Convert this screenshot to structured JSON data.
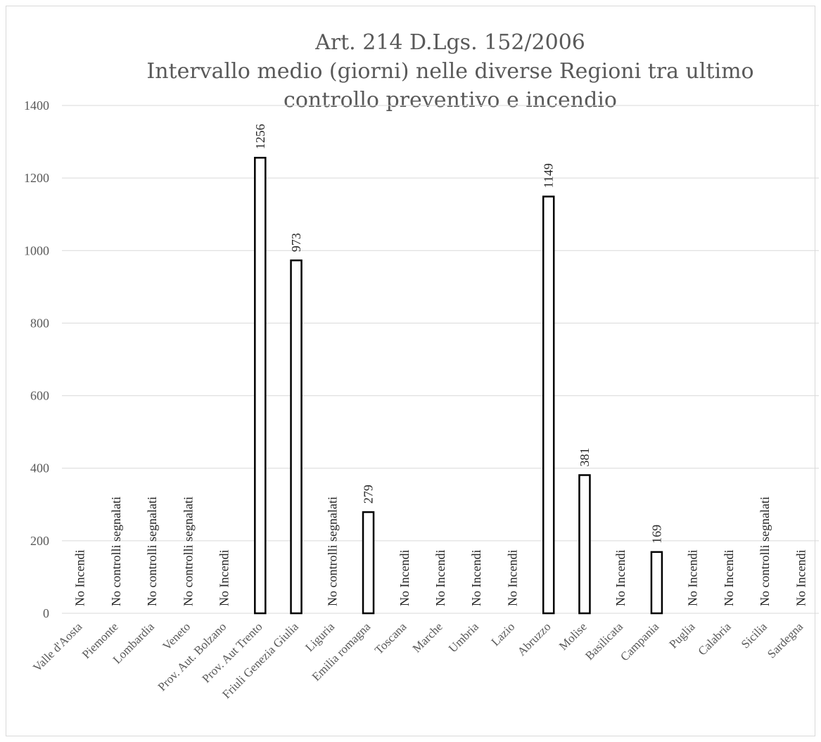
{
  "chart_data": {
    "type": "bar",
    "title_lines": [
      "Art. 214 D.Lgs. 152/2006",
      "Intervallo medio (giorni) nelle diverse Regioni tra ultimo",
      "controllo preventivo e incendio"
    ],
    "xlabel": "",
    "ylabel": "",
    "ylim": [
      0,
      1400
    ],
    "yticks": [
      "0",
      "200",
      "400",
      "600",
      "800",
      "1000",
      "1200",
      "1400"
    ],
    "grid": true,
    "legend": "none",
    "categories": [
      "Valle d'Aosta",
      "Piemonte",
      "Lombardia",
      "Veneto",
      "Prov. Aut. Bolzano",
      "Prov. Aut Trento",
      "Friuli Genezia Giulia",
      "Liguria",
      "Emilia romagna",
      "Toscana",
      "Marche",
      "Umbria",
      "Lazio",
      "Abruzzo",
      "Molise",
      "Basilicata",
      "Campania",
      "Puglia",
      "Calabria",
      "Sicilia",
      "Sardegna"
    ],
    "values": [
      null,
      null,
      null,
      null,
      null,
      1256,
      973,
      null,
      279,
      null,
      null,
      null,
      null,
      1149,
      381,
      null,
      169,
      null,
      null,
      null,
      null
    ],
    "data_labels": [
      "No Incendi",
      "No controlli segnalati",
      "No controlli segnalati",
      "No controlli segnalati",
      "No Incendi",
      "1256",
      "973",
      "No controlli segnalati",
      "279",
      "No Incendi",
      "No Incendi",
      "No Incendi",
      "No Incendi",
      "1149",
      "381",
      "No Incendi",
      "169",
      "No Incendi",
      "No Incendi",
      "No controlli segnalati",
      "No Incendi"
    ],
    "colors": {
      "bar_fill": "#ffffff",
      "bar_stroke": "#000000",
      "grid": "#d9d9d9",
      "text": "#595959"
    }
  }
}
